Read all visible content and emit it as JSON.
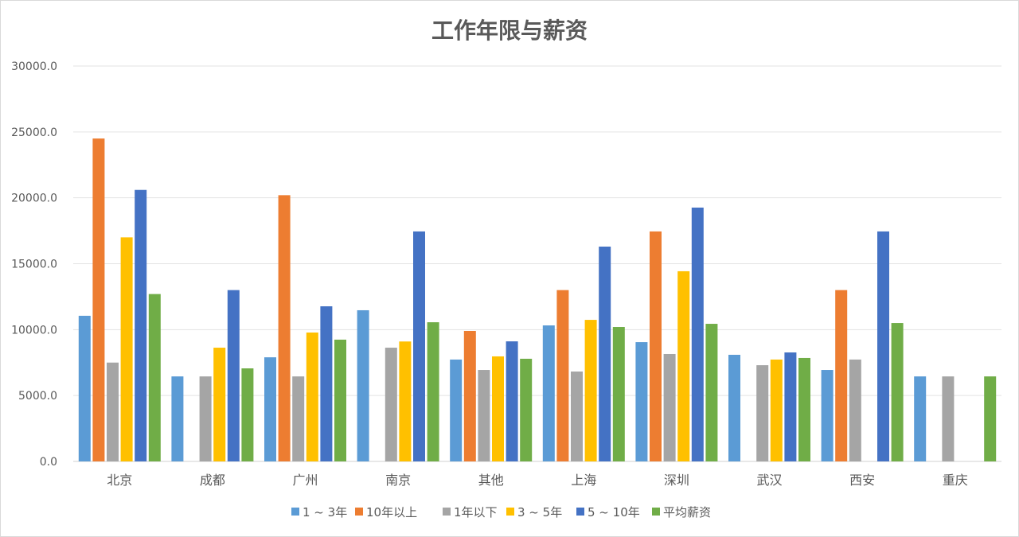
{
  "chart_data": {
    "type": "bar",
    "title": "工作年限与薪资",
    "xlabel": "",
    "ylabel": "",
    "ylim": [
      0,
      30000
    ],
    "yticks": [
      "0.0",
      "5000.0",
      "10000.0",
      "15000.0",
      "20000.0",
      "25000.0",
      "30000.0"
    ],
    "grid": true,
    "legend_position": "bottom",
    "categories": [
      "北京",
      "成都",
      "广州",
      "南京",
      "其他",
      "上海",
      "深圳",
      "武汉",
      "西安",
      "重庆"
    ],
    "series": [
      {
        "name": "1 ~ 3年",
        "color": "#5b9bd5",
        "values": [
          11050,
          6450,
          7900,
          11470,
          7730,
          10320,
          9050,
          8090,
          6940,
          6450
        ]
      },
      {
        "name": "10年以上",
        "color": "#ed7d31",
        "values": [
          24500,
          null,
          20200,
          null,
          9900,
          13000,
          17450,
          null,
          13000,
          null
        ]
      },
      {
        "name": "1年以下",
        "color": "#a5a5a5",
        "values": [
          7500,
          6450,
          6450,
          8630,
          6940,
          6820,
          8150,
          7300,
          7730,
          6450
        ]
      },
      {
        "name": "3 ~ 5年",
        "color": "#ffc000",
        "values": [
          17000,
          8630,
          9780,
          9100,
          7970,
          10740,
          14430,
          7730,
          null,
          null
        ]
      },
      {
        "name": "5 ~ 10年",
        "color": "#4472c4",
        "values": [
          20600,
          13000,
          11770,
          17450,
          9110,
          16300,
          19260,
          8270,
          17450,
          null
        ]
      },
      {
        "name": "平均薪资",
        "color": "#70ad47",
        "values": [
          12700,
          7060,
          9240,
          10560,
          7790,
          10200,
          10440,
          7850,
          10500,
          6450
        ]
      }
    ]
  }
}
